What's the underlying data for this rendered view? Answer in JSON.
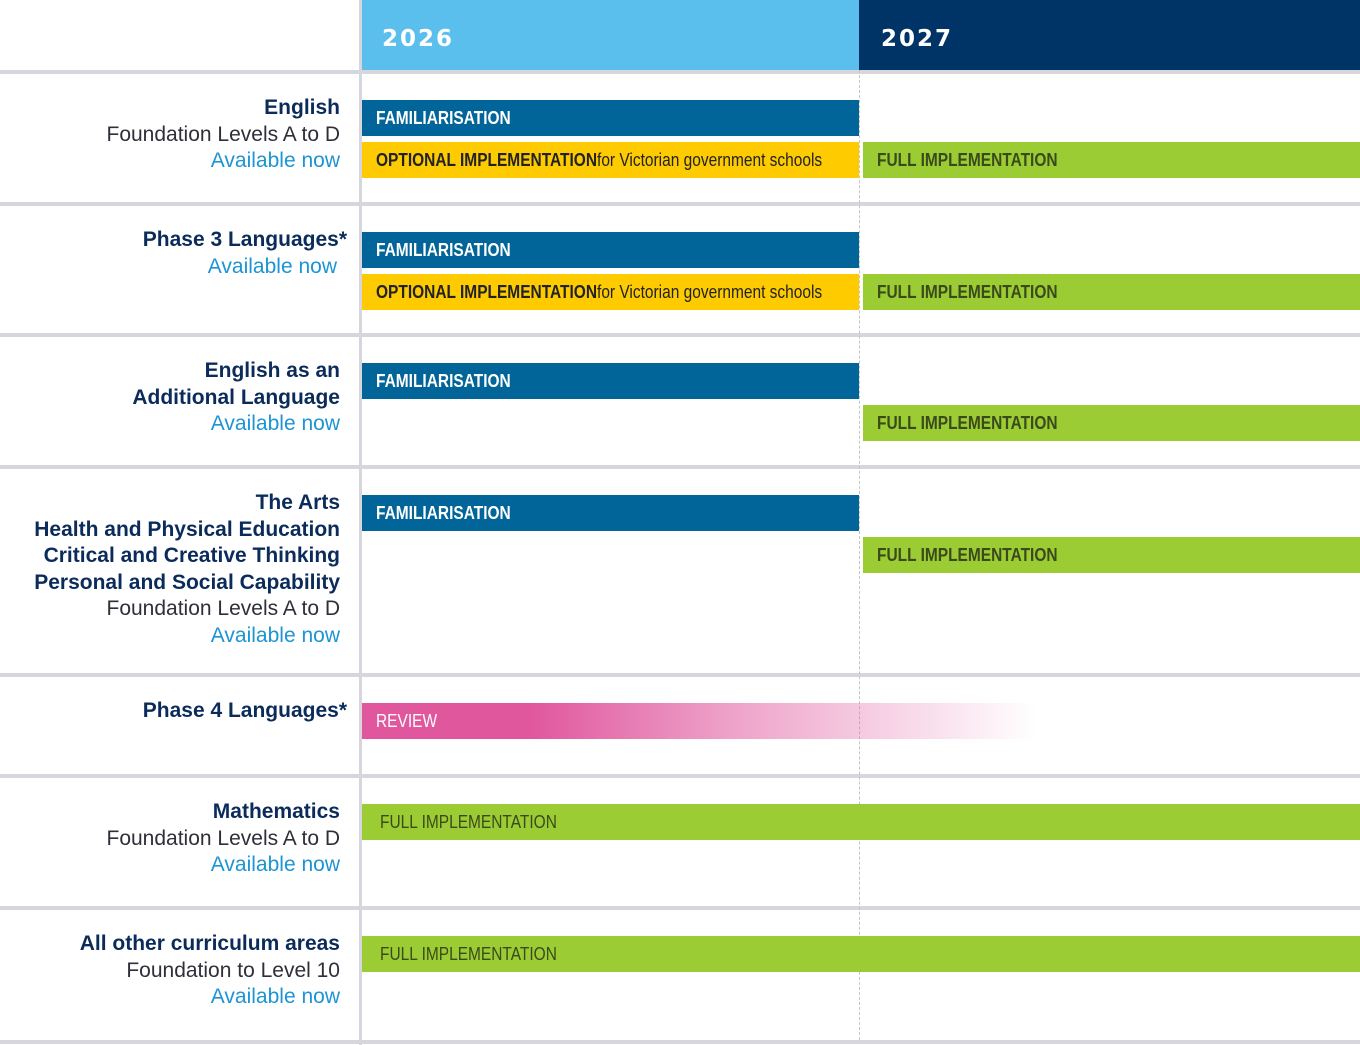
{
  "header": {
    "years": [
      {
        "label": "2026",
        "color": "#5bbfed"
      },
      {
        "label": "2027",
        "color": "#003366"
      }
    ]
  },
  "legend_colors": {
    "familiarisation": "#02659a",
    "optional": "#fecb00",
    "full": "#9ccc34",
    "review": "#e0579e",
    "title_text": "#0b2b5a",
    "available_text": "#1d94d4"
  },
  "rows": [
    {
      "titles": [
        "English"
      ],
      "subtitle": "Foundation Levels A to D",
      "status": "Available now",
      "bars": [
        {
          "kind": "fam",
          "bold": "FAMILIARISATION",
          "rest": "",
          "start": 2026.0,
          "end": 2027.0,
          "lane": 0
        },
        {
          "kind": "opt",
          "bold": "OPTIONAL IMPLEMENTATION",
          "rest": " for Victorian government schools",
          "start": 2026.0,
          "end": 2027.0,
          "lane": 1
        },
        {
          "kind": "full",
          "bold": "FULL IMPLEMENTATION",
          "rest": "",
          "start": 2027.0,
          "end": 2028.0,
          "lane": 1
        }
      ]
    },
    {
      "titles": [
        "Phase 3 Languages*"
      ],
      "subtitle": "",
      "status": "Available now",
      "bars": [
        {
          "kind": "fam",
          "bold": "FAMILIARISATION",
          "rest": "",
          "start": 2026.0,
          "end": 2027.0,
          "lane": 0
        },
        {
          "kind": "opt",
          "bold": "OPTIONAL IMPLEMENTATION",
          "rest": " for Victorian government schools",
          "start": 2026.0,
          "end": 2027.0,
          "lane": 1
        },
        {
          "kind": "full",
          "bold": "FULL IMPLEMENTATION",
          "rest": "",
          "start": 2027.0,
          "end": 2028.0,
          "lane": 1
        }
      ]
    },
    {
      "titles": [
        "English as an",
        "Additional Language"
      ],
      "subtitle": "",
      "status": "Available now",
      "bars": [
        {
          "kind": "fam",
          "bold": "FAMILIARISATION",
          "rest": "",
          "start": 2026.0,
          "end": 2027.0,
          "lane": 0
        },
        {
          "kind": "full",
          "bold": "FULL IMPLEMENTATION",
          "rest": "",
          "start": 2027.0,
          "end": 2028.0,
          "lane": 1
        }
      ]
    },
    {
      "titles": [
        "The Arts",
        "Health and Physical Education",
        "Critical and Creative Thinking",
        "Personal and Social Capability"
      ],
      "subtitle": "Foundation Levels A to D",
      "status": "Available now",
      "bars": [
        {
          "kind": "fam",
          "bold": "FAMILIARISATION",
          "rest": "",
          "start": 2026.0,
          "end": 2027.0,
          "lane": 0
        },
        {
          "kind": "full",
          "bold": "FULL IMPLEMENTATION",
          "rest": "",
          "start": 2027.0,
          "end": 2028.0,
          "lane": 1
        }
      ]
    },
    {
      "titles": [
        "Phase 4 Languages*"
      ],
      "subtitle": "",
      "status": "",
      "bars": [
        {
          "kind": "review",
          "bold": "",
          "rest": "REVIEW",
          "start": 2026.0,
          "end": 2027.35,
          "lane": 0
        }
      ]
    },
    {
      "titles": [
        "Mathematics"
      ],
      "subtitle": "Foundation Levels A to D",
      "status": "Available now",
      "bars": [
        {
          "kind": "full",
          "bold": "",
          "rest": "FULL IMPLEMENTATION",
          "start": 2026.0,
          "end": 2028.0,
          "lane": 0
        }
      ]
    },
    {
      "titles": [
        "All other curriculum areas"
      ],
      "subtitle": "Foundation to Level 10",
      "status": "Available now",
      "bars": [
        {
          "kind": "full",
          "bold": "",
          "rest": "FULL IMPLEMENTATION",
          "start": 2026.0,
          "end": 2028.0,
          "lane": 0
        }
      ]
    }
  ]
}
